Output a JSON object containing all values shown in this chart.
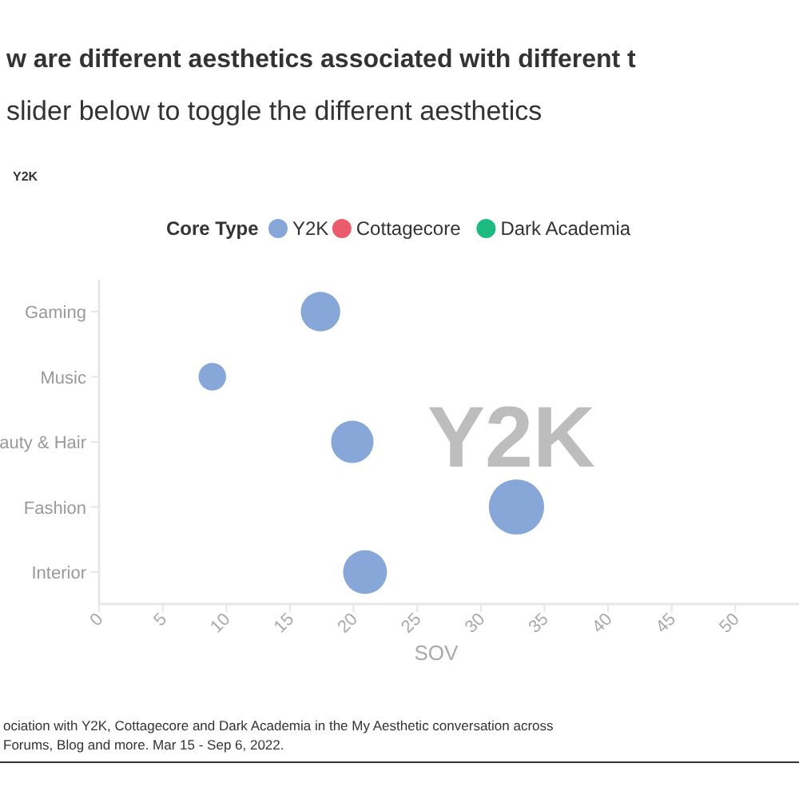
{
  "chart_data": {
    "type": "bubble",
    "title": "w are different aesthetics associated with different t",
    "subtitle": "slider below to toggle the different aesthetics",
    "xlabel": "SOV",
    "legend_title": "Core Type",
    "orientation": "horizontal",
    "categories": [
      "Gaming",
      "Music",
      "auty & Hair",
      "Fashion",
      "Interior"
    ],
    "series": [
      {
        "name": "Y2K",
        "color": "#87a7d9",
        "values": [
          17.4,
          8.9,
          19.9,
          32.8,
          20.9
        ],
        "sizes": [
          0.51,
          0.25,
          0.59,
          1,
          0.63
        ]
      },
      {
        "name": "Cottagecore",
        "color": "#ea5b6b",
        "values": [
          null,
          null,
          null,
          null,
          null
        ]
      },
      {
        "name": "Dark Academia",
        "color": "#1dbb80",
        "values": [
          null,
          null,
          null,
          null,
          null
        ]
      }
    ],
    "xlim": [
      0,
      55
    ],
    "xticks": [
      0,
      5,
      10,
      15,
      20,
      25,
      30,
      35,
      40,
      45,
      50
    ],
    "grid": false,
    "legend": "top",
    "marker": "circle",
    "annotations": [
      "Y2K",
      "Y2K",
      "ociation with Y2K, Cottagecore and Dark Academia in the My Aesthetic conversation across",
      "Forums, Blog and more. Mar 15 - Sep 6, 2022."
    ]
  }
}
